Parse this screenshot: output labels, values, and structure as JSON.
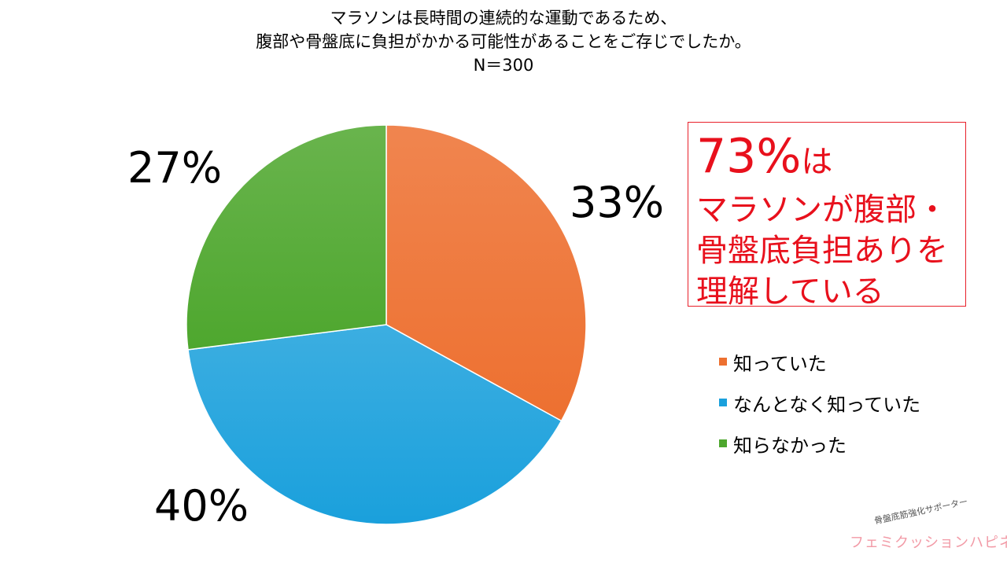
{
  "title": {
    "line1": "マラソンは長時間の連続的な運動であるため、",
    "line2": "腹部や骨盤底に負担がかかる可能性があることをご存じでしたか。",
    "line3": "N＝300"
  },
  "chart_data": {
    "type": "pie",
    "categories": [
      "知っていた",
      "なんとなく知っていた",
      "知らなかった"
    ],
    "values": [
      33,
      40,
      27
    ],
    "data_labels": [
      "33%",
      "40%",
      "27%"
    ],
    "colors": [
      "#ed7030",
      "#1aa0dc",
      "#4ea72e"
    ],
    "legend_position": "right",
    "start_angle_deg": 0,
    "direction": "clockwise"
  },
  "callout": {
    "big_number": "73%",
    "big_suffix": "は",
    "line1": "マラソンが腹部・",
    "line2": "骨盤底負担ありを",
    "line3": "理解している"
  },
  "logo": {
    "tagline": "骨盤底筋強化サポーター",
    "brand": "フェミクッションハピネス"
  }
}
